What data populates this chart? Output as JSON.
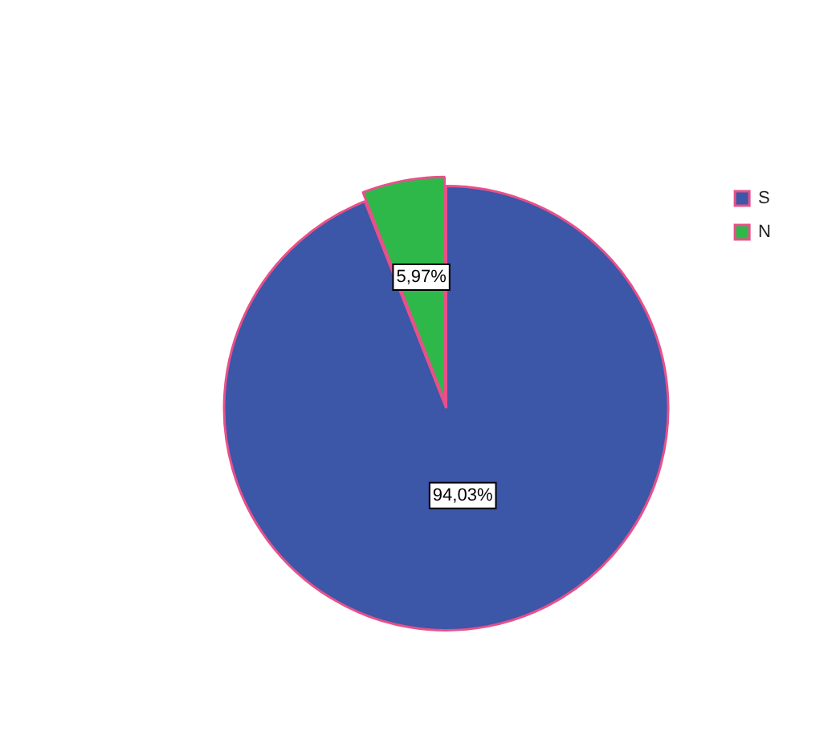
{
  "chart_data": {
    "type": "pie",
    "categories": [
      "S",
      "N"
    ],
    "values": [
      94.03,
      5.97
    ],
    "colors": [
      "#3c56a8",
      "#2fb84a"
    ],
    "value_labels": [
      "94,03%",
      "5,97%"
    ],
    "legend": "top right"
  }
}
